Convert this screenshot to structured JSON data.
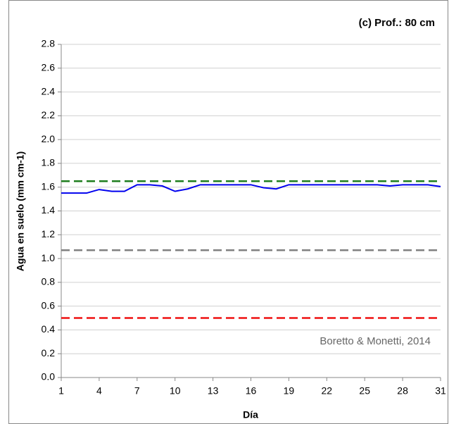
{
  "chart_data": {
    "type": "line",
    "title": "(c) Prof.: 80 cm",
    "annotation": "Boretto & Monetti, 2014",
    "x_label": "Día",
    "y_label": "Agua en suelo (mm cm-1)",
    "x": [
      1,
      2,
      3,
      4,
      5,
      6,
      7,
      8,
      9,
      10,
      11,
      12,
      13,
      14,
      15,
      16,
      17,
      18,
      19,
      20,
      21,
      22,
      23,
      24,
      25,
      26,
      27,
      28,
      29,
      30,
      31
    ],
    "series": [
      {
        "color": "#0000ee",
        "values": [
          1.55,
          1.55,
          1.55,
          1.58,
          1.565,
          1.565,
          1.62,
          1.62,
          1.61,
          1.565,
          1.585,
          1.62,
          1.62,
          1.62,
          1.62,
          1.62,
          1.595,
          1.585,
          1.62,
          1.62,
          1.62,
          1.62,
          1.62,
          1.62,
          1.62,
          1.62,
          1.61,
          1.62,
          1.62,
          1.62,
          1.605
        ]
      }
    ],
    "reference_lines": [
      {
        "value": 1.65,
        "color": "#1e7d1e"
      },
      {
        "value": 1.07,
        "color": "#808080"
      },
      {
        "value": 0.5,
        "color": "#ee1111"
      }
    ],
    "xlim": [
      1,
      31
    ],
    "xticks": [
      1,
      4,
      7,
      10,
      13,
      16,
      19,
      22,
      25,
      28,
      31
    ],
    "ylim": [
      0,
      2.8
    ],
    "yticks": [
      {
        "value": 0,
        "label": "0.0"
      },
      0.2,
      0.4,
      0.6,
      0.8,
      {
        "value": 1,
        "label": "1.0"
      },
      1.2,
      1.4,
      1.6,
      1.8,
      {
        "value": 2,
        "label": "2.0"
      },
      2.2,
      2.4,
      2.6,
      2.8
    ],
    "grid": true
  }
}
